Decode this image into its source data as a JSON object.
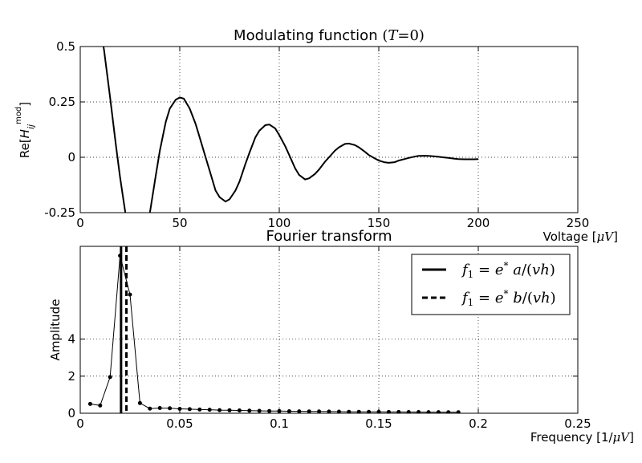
{
  "chart_data": [
    {
      "type": "line",
      "title": "Modulating function (T=0)",
      "xlabel": "Voltage [μV]",
      "ylabel": "Re[H_ij^mod]",
      "xlim": [
        0,
        250
      ],
      "ylim": [
        -0.25,
        0.5
      ],
      "x_ticks": [
        0,
        50,
        100,
        150,
        200,
        250
      ],
      "y_ticks": [
        -0.25,
        0,
        0.25,
        0.5
      ],
      "x_tick_labels": [
        "0",
        "50",
        "100",
        "150",
        "200",
        "250"
      ],
      "y_tick_labels": [
        "-0.25",
        "0",
        "0.25",
        "0.5"
      ],
      "grid": true,
      "series": [
        {
          "color": "#000000",
          "x": [
            10,
            12,
            15,
            18,
            20,
            23,
            25,
            28,
            30,
            33,
            35,
            38,
            40,
            43,
            45,
            48,
            50,
            52,
            55,
            58,
            60,
            63,
            65,
            68,
            70,
            73,
            75,
            78,
            80,
            83,
            85,
            88,
            90,
            93,
            95,
            98,
            100,
            103,
            105,
            108,
            110,
            113,
            115,
            118,
            120,
            123,
            125,
            128,
            130,
            133,
            135,
            138,
            140,
            143,
            145,
            148,
            150,
            153,
            155,
            158,
            160,
            163,
            165,
            168,
            170,
            173,
            175,
            178,
            180,
            183,
            185,
            188,
            190,
            193,
            195,
            198,
            200
          ],
          "y": [
            0.6,
            0.48,
            0.27,
            0.05,
            -0.09,
            -0.27,
            -0.35,
            -0.42,
            -0.42,
            -0.34,
            -0.25,
            -0.08,
            0.03,
            0.16,
            0.22,
            0.26,
            0.27,
            0.265,
            0.22,
            0.15,
            0.09,
            0.0,
            -0.06,
            -0.15,
            -0.18,
            -0.2,
            -0.19,
            -0.15,
            -0.11,
            -0.03,
            0.02,
            0.09,
            0.12,
            0.145,
            0.148,
            0.13,
            0.1,
            0.05,
            0.01,
            -0.05,
            -0.08,
            -0.1,
            -0.095,
            -0.075,
            -0.055,
            -0.02,
            0.0,
            0.03,
            0.045,
            0.06,
            0.062,
            0.055,
            0.045,
            0.025,
            0.01,
            -0.005,
            -0.015,
            -0.023,
            -0.025,
            -0.022,
            -0.015,
            -0.008,
            -0.003,
            0.003,
            0.006,
            0.007,
            0.006,
            0.004,
            0.002,
            -0.001,
            -0.003,
            -0.006,
            -0.008,
            -0.009,
            -0.009,
            -0.009,
            -0.008
          ]
        }
      ]
    },
    {
      "type": "line",
      "title": "Fourier transform",
      "xlabel": "Frequency [1/μV]",
      "ylabel": "Amplitude",
      "xlim": [
        0,
        0.25
      ],
      "ylim": [
        0,
        9
      ],
      "x_ticks": [
        0,
        0.05,
        0.1,
        0.15,
        0.2,
        0.25
      ],
      "y_ticks": [
        0,
        2,
        4
      ],
      "x_tick_labels": [
        "0",
        "0.05",
        "0.1",
        "0.15",
        "0.2",
        "0.25"
      ],
      "y_tick_labels": [
        "0",
        "2",
        "4"
      ],
      "grid": true,
      "legend_position": "top-right",
      "series": [
        {
          "color": "#000000",
          "marker": "dot",
          "x": [
            0.005,
            0.01,
            0.015,
            0.02,
            0.025,
            0.03,
            0.035,
            0.04,
            0.045,
            0.05,
            0.055,
            0.06,
            0.065,
            0.07,
            0.075,
            0.08,
            0.085,
            0.09,
            0.095,
            0.1,
            0.105,
            0.11,
            0.115,
            0.12,
            0.125,
            0.13,
            0.135,
            0.14,
            0.145,
            0.15,
            0.155,
            0.16,
            0.165,
            0.17,
            0.175,
            0.18,
            0.185,
            0.19
          ],
          "y": [
            0.5,
            0.42,
            1.95,
            8.5,
            6.4,
            0.55,
            0.25,
            0.28,
            0.27,
            0.24,
            0.22,
            0.2,
            0.19,
            0.17,
            0.16,
            0.15,
            0.14,
            0.13,
            0.12,
            0.115,
            0.11,
            0.105,
            0.1,
            0.095,
            0.09,
            0.085,
            0.08,
            0.078,
            0.075,
            0.072,
            0.07,
            0.068,
            0.066,
            0.064,
            0.062,
            0.06,
            0.058,
            0.056
          ]
        }
      ],
      "vlines": [
        {
          "x": 0.0205,
          "style": "solid",
          "label": "f1 = e* a/(vh)"
        },
        {
          "x": 0.0232,
          "style": "dashed",
          "label": "f1 = e* b/(vh)"
        }
      ]
    }
  ]
}
